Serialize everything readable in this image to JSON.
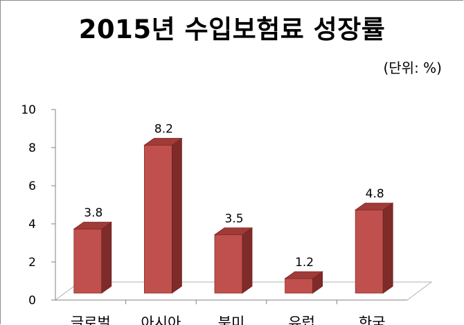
{
  "title": "2015년 수입보험료 성장률",
  "unit_label": "(단위: %)",
  "chart_data": {
    "type": "bar",
    "title": "2015년 수입보험료 성장률",
    "categories": [
      "글로벌",
      "아시아",
      "북미",
      "유럽",
      "한국"
    ],
    "values": [
      3.8,
      8.2,
      3.5,
      1.2,
      4.8
    ],
    "ylim": [
      0,
      10
    ],
    "yticks": [
      0,
      2,
      4,
      6,
      8,
      10
    ],
    "grid": false,
    "bar_color": "#c0504d",
    "bar_side_color": "#7f2b29",
    "bar_top_color": "#a13b38"
  }
}
